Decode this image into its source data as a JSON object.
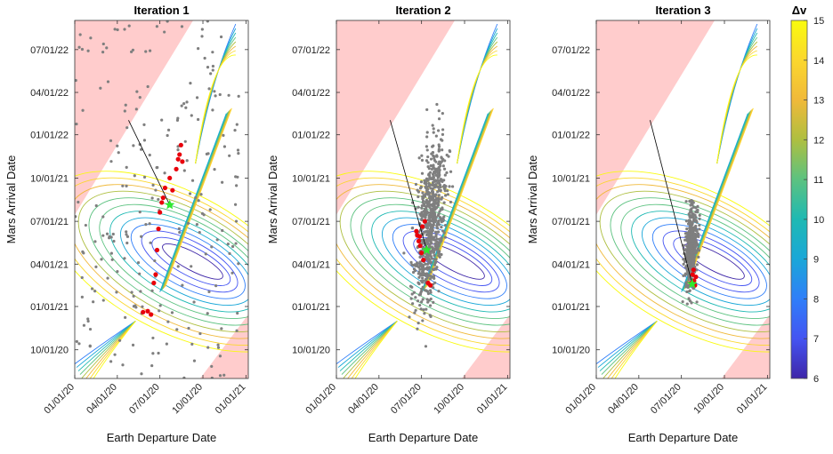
{
  "chart_data": [
    {
      "type": "scatter",
      "title": "Iteration 1",
      "xlabel": "Earth Departure Date",
      "ylabel": "Mars Arrival Date",
      "xticks": [
        "01/01/20",
        "04/01/20",
        "07/01/20",
        "10/01/20",
        "01/01/21"
      ],
      "yticks": [
        "10/01/20",
        "01/01/21",
        "04/01/21",
        "07/01/21",
        "10/01/21",
        "01/01/22",
        "04/01/22",
        "07/01/22"
      ],
      "xlim": [
        "01/01/20",
        "01/06/21"
      ],
      "ylim": [
        "08/01/20",
        "09/01/22"
      ],
      "background": "Δv contour map with infeasible (pink) regions",
      "samples": "widely scattered grey samples across domain",
      "elite_points": [
        [
          "06/12/20",
          "12/15/20"
        ],
        [
          "06/18/20",
          "02/20/21"
        ],
        [
          "06/22/20",
          "03/10/21"
        ],
        [
          "06/25/20",
          "05/01/21"
        ],
        [
          "06/28/20",
          "06/15/21"
        ],
        [
          "07/01/20",
          "07/20/21"
        ],
        [
          "07/05/20",
          "08/10/21"
        ],
        [
          "07/08/20",
          "08/20/21"
        ],
        [
          "07/12/20",
          "09/10/21"
        ],
        [
          "07/28/20",
          "09/05/21"
        ],
        [
          "07/22/20",
          "10/01/21"
        ],
        [
          "08/05/20",
          "10/20/21"
        ],
        [
          "08/09/20",
          "11/10/21"
        ],
        [
          "08/12/20",
          "11/20/21"
        ],
        [
          "08/15/20",
          "12/10/21"
        ],
        [
          "08/18/20",
          "11/05/21"
        ],
        [
          "05/26/20",
          "12/20/20"
        ],
        [
          "06/05/20",
          "12/22/20"
        ]
      ],
      "best": [
        "07/22/20",
        "08/05/21"
      ]
    },
    {
      "type": "scatter",
      "title": "Iteration 2",
      "xlabel": "Earth Departure Date",
      "ylabel": "Mars Arrival Date",
      "xticks": [
        "01/01/20",
        "04/01/20",
        "07/01/20",
        "10/01/20",
        "01/01/21"
      ],
      "yticks": [
        "10/01/20",
        "01/01/21",
        "04/01/21",
        "07/01/21",
        "10/01/21",
        "01/01/22",
        "04/01/22",
        "07/01/22"
      ],
      "xlim": [
        "01/01/20",
        "01/06/21"
      ],
      "ylim": [
        "08/01/20",
        "09/01/22"
      ],
      "samples": "dense grey cloud centred near 07/20 → 07/21",
      "elite_points": [
        [
          "06/20/20",
          "06/10/21"
        ],
        [
          "06/22/20",
          "06/01/21"
        ],
        [
          "06/25/20",
          "05/20/21"
        ],
        [
          "06/28/20",
          "05/10/21"
        ],
        [
          "07/01/20",
          "04/25/21"
        ],
        [
          "07/05/20",
          "04/10/21"
        ],
        [
          "07/08/20",
          "07/01/21"
        ],
        [
          "07/03/20",
          "06/20/21"
        ],
        [
          "07/15/20",
          "02/20/21"
        ],
        [
          "07/20/20",
          "02/15/21"
        ],
        [
          "06/27/20",
          "05/30/21"
        ]
      ],
      "best": [
        "07/12/20",
        "05/01/21"
      ]
    },
    {
      "type": "scatter",
      "title": "Iteration 3",
      "xlabel": "Earth Departure Date",
      "ylabel": "Mars Arrival Date",
      "xticks": [
        "01/01/20",
        "04/01/20",
        "07/01/20",
        "10/01/20",
        "01/01/21"
      ],
      "yticks": [
        "10/01/20",
        "01/01/21",
        "04/01/21",
        "07/01/21",
        "10/01/21",
        "01/01/22",
        "04/01/22",
        "07/01/22"
      ],
      "xlim": [
        "01/01/20",
        "01/06/21"
      ],
      "ylim": [
        "08/01/20",
        "09/01/22"
      ],
      "samples": "tight grey cluster near 07/20 → 03/21",
      "elite_points": [
        [
          "07/25/20",
          "03/10/21"
        ],
        [
          "07/28/20",
          "02/25/21"
        ],
        [
          "07/30/20",
          "02/15/21"
        ],
        [
          "07/27/20",
          "03/20/21"
        ],
        [
          "07/22/20",
          "02/20/21"
        ],
        [
          "08/01/20",
          "03/05/21"
        ]
      ],
      "best": [
        "07/24/20",
        "02/18/21"
      ]
    }
  ],
  "colorbar": {
    "label": "Δv",
    "ticks": [
      "6",
      "7",
      "8",
      "9",
      "10",
      "11",
      "12",
      "13",
      "14",
      "15"
    ],
    "min": 6,
    "max": 15,
    "colors": [
      "#3e26a8",
      "#4454f2",
      "#2f7ef9",
      "#1aa7d8",
      "#1eb9b3",
      "#5cc280",
      "#aebf40",
      "#f0b93a",
      "#fbd72d",
      "#f9fb0e"
    ]
  },
  "colors": {
    "infeasible": "#ffcccc",
    "sample": "#7f7f7f",
    "elite": "#e8000b",
    "best": "#2ee82e"
  }
}
